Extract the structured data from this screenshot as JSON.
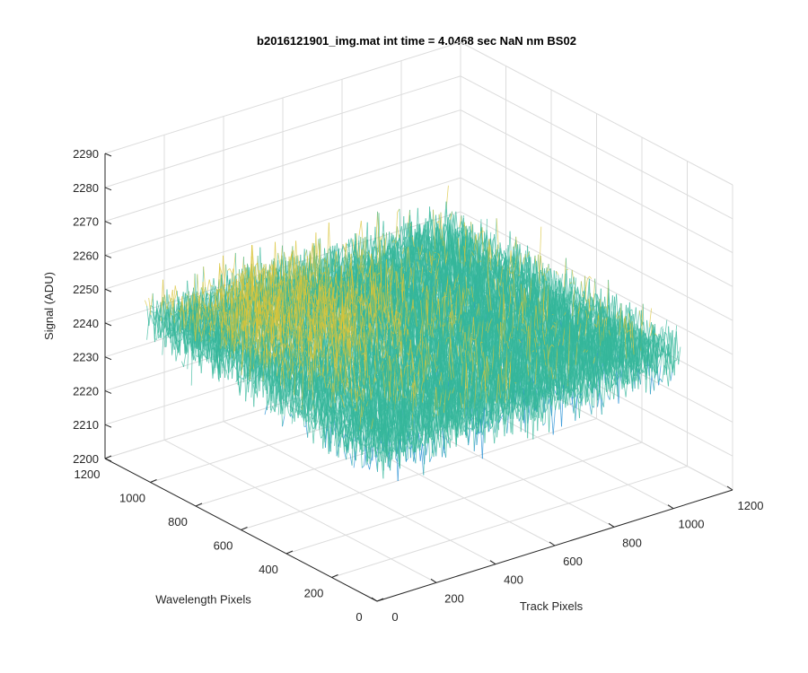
{
  "chart_data": {
    "type": "surface",
    "title": "b2016121901_img.mat int time = 4.0468 sec  NaN nm BS02",
    "xlabel": "Track Pixels",
    "ylabel": "Wavelength Pixels",
    "zlabel": "Signal (ADU)",
    "xlim": [
      0,
      1200
    ],
    "ylim": [
      0,
      1200
    ],
    "zlim": [
      2200,
      2290
    ],
    "x_ticks": [
      "0",
      "200",
      "400",
      "600",
      "800",
      "1000",
      "1200"
    ],
    "y_ticks": [
      "0",
      "200",
      "400",
      "600",
      "800",
      "1000",
      "1200"
    ],
    "z_ticks": [
      "2200",
      "2210",
      "2220",
      "2230",
      "2240",
      "2250",
      "2260",
      "2270",
      "2280",
      "2290"
    ],
    "grid": true,
    "surface_extent": {
      "x": [
        0,
        1024
      ],
      "y": [
        0,
        1024
      ]
    },
    "mean_level": 2245,
    "noise_range": [
      2215,
      2285
    ],
    "colors": {
      "high": "#d9c43a",
      "mid": "#35b79b",
      "low": "#1a8ad3"
    }
  }
}
